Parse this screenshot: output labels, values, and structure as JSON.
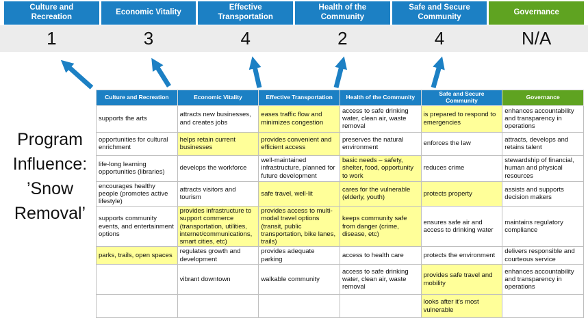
{
  "slide": {
    "program_label": "Program Influence: ’Snow Removal’"
  },
  "colors": {
    "header_blue": "#1c80c4",
    "header_green": "#5fa321",
    "highlight_yellow": "#ffff99",
    "score_row_bg": "#ececec",
    "table_border": "#bfbfbf",
    "arrow_blue": "#1c80c4"
  },
  "icons": {
    "influence_arrow": "up-arrow"
  },
  "columns": [
    {
      "label": "Culture and Recreation",
      "score": "1",
      "theme": "blue"
    },
    {
      "label": "Economic Vitality",
      "score": "3",
      "theme": "blue"
    },
    {
      "label": "Effective Transportation",
      "score": "4",
      "theme": "blue"
    },
    {
      "label": "Health of the Community",
      "score": "2",
      "theme": "blue"
    },
    {
      "label": "Safe and Secure Community",
      "score": "4",
      "theme": "blue"
    },
    {
      "label": "Governance",
      "score": "N/A",
      "theme": "green"
    }
  ],
  "matrix_rows": [
    [
      {
        "text": "supports the arts",
        "highlight": false
      },
      {
        "text": "attracts new businesses, and creates jobs",
        "highlight": false
      },
      {
        "text": "eases traffic flow and minimizes congestion",
        "highlight": true
      },
      {
        "text": "access to safe drinking water, clean air, waste removal",
        "highlight": false
      },
      {
        "text": "is prepared to respond to emergencies",
        "highlight": true
      },
      {
        "text": "enhances accountability and transparency in operations",
        "highlight": false
      }
    ],
    [
      {
        "text": "opportunities for cultural enrichment",
        "highlight": false
      },
      {
        "text": "helps retain current businesses",
        "highlight": true
      },
      {
        "text": "provides convenient and efficient access",
        "highlight": true
      },
      {
        "text": "preserves the natural environment",
        "highlight": false
      },
      {
        "text": "enforces the law",
        "highlight": false
      },
      {
        "text": "attracts, develops and retains talent",
        "highlight": false
      }
    ],
    [
      {
        "text": "life-long learning opportunities (libraries)",
        "highlight": false
      },
      {
        "text": "develops the workforce",
        "highlight": false
      },
      {
        "text": "well-maintained infrastructure, planned for future development",
        "highlight": false
      },
      {
        "text": "basic needs – safety, shelter, food, opportunity to work",
        "highlight": true
      },
      {
        "text": "reduces crime",
        "highlight": false
      },
      {
        "text": "stewardship of financial, human and physical resources",
        "highlight": false
      }
    ],
    [
      {
        "text": "encourages healthy people (promotes active lifestyle)",
        "highlight": false
      },
      {
        "text": "attracts visitors and tourism",
        "highlight": false
      },
      {
        "text": "safe travel, well-lit",
        "highlight": true
      },
      {
        "text": "cares for the vulnerable (elderly, youth)",
        "highlight": true
      },
      {
        "text": "protects property",
        "highlight": true
      },
      {
        "text": "assists and supports decision makers",
        "highlight": false
      }
    ],
    [
      {
        "text": "supports community events, and entertainment options",
        "highlight": false
      },
      {
        "text": "provides infrastructure to support commerce (transportation, utilities, internet/communications, smart cities, etc)",
        "highlight": true
      },
      {
        "text": "provides access to multi-modal travel options (transit, public transportation, bike lanes, trails)",
        "highlight": true
      },
      {
        "text": "keeps community safe from danger (crime, disease, etc)",
        "highlight": true
      },
      {
        "text": "ensures safe air and access to drinking water",
        "highlight": false
      },
      {
        "text": "maintains regulatory compliance",
        "highlight": false
      }
    ],
    [
      {
        "text": "parks, trails, open spaces",
        "highlight": true
      },
      {
        "text": "regulates growth and development",
        "highlight": false
      },
      {
        "text": "provides adequate parking",
        "highlight": false
      },
      {
        "text": "access to health care",
        "highlight": false
      },
      {
        "text": "protects the environment",
        "highlight": false
      },
      {
        "text": "delivers responsible and courteous service",
        "highlight": false
      }
    ],
    [
      {
        "text": "",
        "highlight": false
      },
      {
        "text": "vibrant downtown",
        "highlight": false
      },
      {
        "text": "walkable community",
        "highlight": false
      },
      {
        "text": "access to safe drinking water, clean air, waste removal",
        "highlight": false
      },
      {
        "text": "provides safe travel and mobility",
        "highlight": true
      },
      {
        "text": "enhances accountability and transparency in operations",
        "highlight": false
      }
    ],
    [
      {
        "text": "",
        "highlight": false
      },
      {
        "text": "",
        "highlight": false
      },
      {
        "text": "",
        "highlight": false
      },
      {
        "text": "",
        "highlight": false
      },
      {
        "text": "looks after it's most vulnerable",
        "highlight": true
      },
      {
        "text": "",
        "highlight": false
      }
    ]
  ]
}
